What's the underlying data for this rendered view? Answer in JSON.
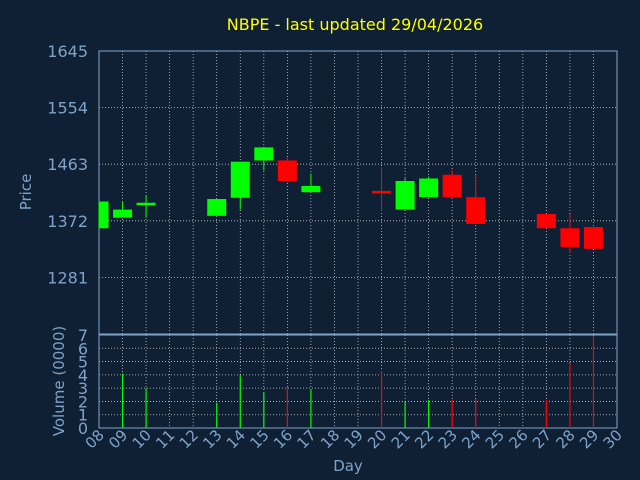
{
  "title": "NBPE - last updated 29/04/2026",
  "chart_data": [
    {
      "type": "candlestick",
      "ylabel": "Price",
      "ylim": [
        1190,
        1645
      ],
      "yticks": [
        "1645",
        "1554",
        "1463",
        "1372",
        "1281"
      ],
      "ytick_values": [
        1645,
        1554,
        1463,
        1372,
        1281
      ],
      "grid": true,
      "colors": {
        "up": "#00ff00",
        "down": "#ff0000",
        "grid": "#ffffff",
        "axis": "#7fa3c8",
        "background": "#0f2035"
      },
      "candles": [
        {
          "day": "08",
          "open": 1360,
          "close": 1403,
          "high": 1403,
          "low": 1360,
          "dir": "up"
        },
        {
          "day": "09",
          "open": 1377,
          "close": 1390,
          "high": 1403,
          "low": 1377,
          "dir": "up"
        },
        {
          "day": "10",
          "open": 1397,
          "close": 1401,
          "high": 1413,
          "low": 1377,
          "dir": "up"
        },
        {
          "day": "13",
          "open": 1380,
          "close": 1407,
          "high": 1407,
          "low": 1380,
          "dir": "up"
        },
        {
          "day": "14",
          "open": 1409,
          "close": 1467,
          "high": 1467,
          "low": 1390,
          "dir": "up"
        },
        {
          "day": "15",
          "open": 1469,
          "close": 1490,
          "high": 1490,
          "low": 1453,
          "dir": "up"
        },
        {
          "day": "16",
          "open": 1469,
          "close": 1436,
          "high": 1474,
          "low": 1436,
          "dir": "down"
        },
        {
          "day": "17",
          "open": 1418,
          "close": 1428,
          "high": 1448,
          "low": 1418,
          "dir": "up"
        },
        {
          "day": "20",
          "open": 1420,
          "close": 1416,
          "high": 1458,
          "low": 1388,
          "dir": "down"
        },
        {
          "day": "21",
          "open": 1390,
          "close": 1436,
          "high": 1440,
          "low": 1390,
          "dir": "up"
        },
        {
          "day": "22",
          "open": 1410,
          "close": 1440,
          "high": 1443,
          "low": 1410,
          "dir": "up"
        },
        {
          "day": "23",
          "open": 1446,
          "close": 1410,
          "high": 1453,
          "low": 1410,
          "dir": "down"
        },
        {
          "day": "24",
          "open": 1410,
          "close": 1367,
          "high": 1446,
          "low": 1367,
          "dir": "down"
        },
        {
          "day": "27",
          "open": 1383,
          "close": 1360,
          "high": 1383,
          "low": 1360,
          "dir": "down"
        },
        {
          "day": "28",
          "open": 1360,
          "close": 1330,
          "high": 1383,
          "low": 1320,
          "dir": "down"
        },
        {
          "day": "29",
          "open": 1362,
          "close": 1327,
          "high": 1362,
          "low": 1327,
          "dir": "down"
        }
      ]
    },
    {
      "type": "bar",
      "ylabel": "Volume (0000)",
      "xlabel": "Day",
      "ylim": [
        0,
        7
      ],
      "yticks": [
        "0",
        "1",
        "2",
        "3",
        "4",
        "5",
        "6",
        "7"
      ],
      "ytick_values": [
        0,
        1,
        2,
        3,
        4,
        5,
        6,
        7
      ],
      "x_tick_labels": [
        "08",
        "09",
        "10",
        "11",
        "12",
        "13",
        "14",
        "15",
        "16",
        "17",
        "18",
        "19",
        "20",
        "21",
        "22",
        "23",
        "24",
        "25",
        "26",
        "27",
        "28",
        "29",
        "30"
      ],
      "volumes": [
        {
          "day": "09",
          "value": 4.1,
          "dir": "up"
        },
        {
          "day": "10",
          "value": 3.0,
          "dir": "up"
        },
        {
          "day": "13",
          "value": 1.9,
          "dir": "up"
        },
        {
          "day": "14",
          "value": 4.0,
          "dir": "up"
        },
        {
          "day": "15",
          "value": 2.7,
          "dir": "up"
        },
        {
          "day": "16",
          "value": 3.1,
          "dir": "down"
        },
        {
          "day": "17",
          "value": 2.9,
          "dir": "up"
        },
        {
          "day": "20",
          "value": 4.3,
          "dir": "down"
        },
        {
          "day": "21",
          "value": 2.0,
          "dir": "up"
        },
        {
          "day": "22",
          "value": 2.1,
          "dir": "up"
        },
        {
          "day": "23",
          "value": 2.1,
          "dir": "down"
        },
        {
          "day": "24",
          "value": 2.2,
          "dir": "down"
        },
        {
          "day": "27",
          "value": 2.1,
          "dir": "down"
        },
        {
          "day": "28",
          "value": 4.9,
          "dir": "down"
        },
        {
          "day": "29",
          "value": 6.9,
          "dir": "down"
        }
      ]
    }
  ]
}
